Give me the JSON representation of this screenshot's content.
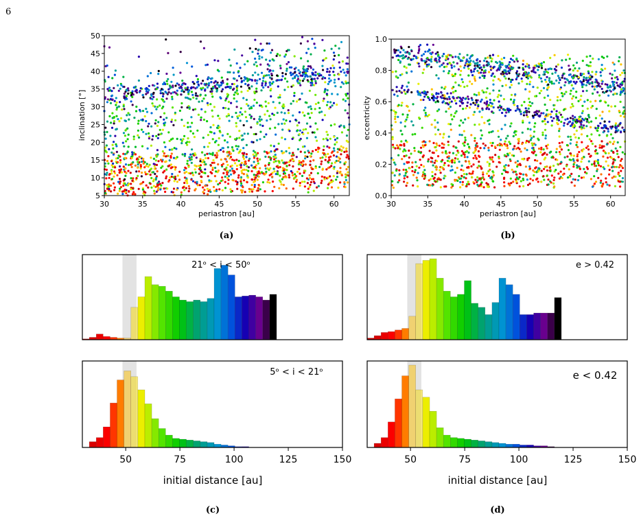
{
  "page_number": "6",
  "chart_data": [
    {
      "id": "a",
      "type": "scatter",
      "xlabel": "periastron [au]",
      "ylabel": "inclination [°]",
      "xlim": [
        30,
        62
      ],
      "ylim": [
        5,
        50
      ],
      "xticks": [
        "30",
        "35",
        "40",
        "45",
        "50",
        "55",
        "60"
      ],
      "yticks": [
        "5",
        "10",
        "15",
        "20",
        "25",
        "30",
        "35",
        "40",
        "45",
        "50"
      ],
      "color_by": "initial distance [au]",
      "colormap": "rainbow (red → yellow → green → blue → purple → black)",
      "caption": "(a)",
      "trends": [
        {
          "note": "band",
          "x": [
            30,
            62
          ],
          "y": [
            33,
            40
          ],
          "color": "#4b0082"
        },
        {
          "note": "band",
          "x": [
            35,
            62
          ],
          "y": [
            5,
            24
          ],
          "color": "#f0c000"
        },
        {
          "note": "cluster",
          "x": [
            30,
            45
          ],
          "y": [
            5,
            15
          ],
          "color": "#e00000"
        }
      ]
    },
    {
      "id": "b",
      "type": "scatter",
      "xlabel": "periastron [au]",
      "ylabel": "eccentricity",
      "xlim": [
        30,
        62
      ],
      "ylim": [
        0.0,
        1.0
      ],
      "xticks": [
        "30",
        "35",
        "40",
        "45",
        "50",
        "55",
        "60"
      ],
      "yticks": [
        "0.0",
        "0.2",
        "0.4",
        "0.6",
        "0.8",
        "1.0"
      ],
      "color_by": "initial distance [au]",
      "colormap": "rainbow",
      "caption": "(b)",
      "trends": [
        {
          "note": "band",
          "x": [
            30,
            62
          ],
          "y": [
            0.9,
            0.7
          ],
          "color": "#008000"
        },
        {
          "note": "band",
          "x": [
            33,
            62
          ],
          "y": [
            0.65,
            0.4
          ],
          "color": "#3a0080"
        },
        {
          "note": "cluster",
          "x": [
            33,
            48
          ],
          "y": [
            0.05,
            0.35
          ],
          "color": "#e00000"
        }
      ]
    },
    {
      "id": "c-top",
      "type": "bar",
      "label": "21ᵒ < i < 50ᵒ",
      "bin_start": 30,
      "bin_width": 3.2,
      "values": [
        0.01,
        0.03,
        0.07,
        0.04,
        0.03,
        0.02,
        0.02,
        0.4,
        0.53,
        0.78,
        0.68,
        0.66,
        0.6,
        0.53,
        0.49,
        0.47,
        0.49,
        0.47,
        0.51,
        0.88,
        0.92,
        0.8,
        0.53,
        0.54,
        0.55,
        0.53,
        0.49,
        0.56
      ],
      "shade_x": [
        48.5,
        55.0
      ],
      "xlim": [
        30,
        150
      ]
    },
    {
      "id": "c-bottom",
      "type": "bar",
      "label": "5ᵒ < i < 21ᵒ",
      "bin_start": 30,
      "bin_width": 3.2,
      "values": [
        0.0,
        0.07,
        0.12,
        0.25,
        0.54,
        0.82,
        0.93,
        0.86,
        0.7,
        0.53,
        0.35,
        0.23,
        0.15,
        0.11,
        0.1,
        0.09,
        0.08,
        0.07,
        0.06,
        0.04,
        0.03,
        0.02,
        0.01,
        0.01,
        0.0,
        0.0,
        0.0,
        0.0
      ],
      "shade_x": [
        48.5,
        55.0
      ],
      "xlim": [
        30,
        150
      ],
      "xlabel": "initial distance [au]",
      "xticks": [
        "50",
        "75",
        "100",
        "125",
        "150"
      ],
      "caption": "(c)"
    },
    {
      "id": "d-top",
      "type": "bar",
      "label": "e > 0.42",
      "bin_start": 30,
      "bin_width": 3.2,
      "values": [
        0.02,
        0.05,
        0.09,
        0.1,
        0.12,
        0.14,
        0.29,
        0.94,
        0.98,
        1.0,
        0.76,
        0.6,
        0.53,
        0.56,
        0.73,
        0.45,
        0.4,
        0.31,
        0.46,
        0.76,
        0.68,
        0.56,
        0.31,
        0.31,
        0.33,
        0.33,
        0.33,
        0.52
      ],
      "shade_x": [
        48.5,
        55.0
      ],
      "xlim": [
        30,
        150
      ]
    },
    {
      "id": "d-bottom",
      "type": "bar",
      "label": "e < 0.42",
      "bin_start": 30,
      "bin_width": 3.2,
      "values": [
        0.0,
        0.05,
        0.12,
        0.31,
        0.59,
        0.87,
        1.0,
        0.7,
        0.61,
        0.44,
        0.24,
        0.15,
        0.12,
        0.11,
        0.1,
        0.09,
        0.08,
        0.07,
        0.06,
        0.05,
        0.04,
        0.04,
        0.03,
        0.03,
        0.02,
        0.02,
        0.01,
        0.0
      ],
      "shade_x": [
        48.5,
        55.0
      ],
      "xlim": [
        30,
        150
      ],
      "xlabel": "initial distance [au]",
      "xticks": [
        "50",
        "75",
        "100",
        "125",
        "150"
      ],
      "caption": "(d)"
    }
  ]
}
